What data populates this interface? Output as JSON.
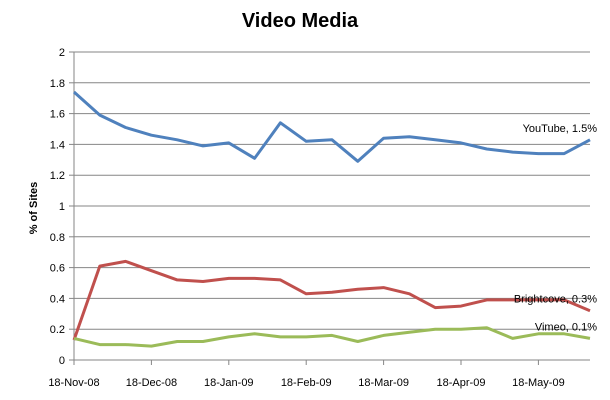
{
  "chart_data": {
    "type": "line",
    "title": "Video Media",
    "xlabel": "",
    "ylabel": "% of Sites",
    "ylim": [
      0,
      2
    ],
    "y_ticks": [
      "0",
      "0.2",
      "0.4",
      "0.6",
      "0.8",
      "1",
      "1.2",
      "1.4",
      "1.6",
      "1.8",
      "2"
    ],
    "x_tick_labels": [
      "18-Nov-08",
      "18-Dec-08",
      "18-Jan-09",
      "18-Feb-09",
      "18-Mar-09",
      "18-Apr-09",
      "18-May-09"
    ],
    "grid": "horizontal",
    "legend": "none",
    "series": [
      {
        "name": "YouTube",
        "annotation": "YouTube, 1.5%",
        "color": "#4f81bd",
        "values": [
          1.74,
          1.59,
          1.51,
          1.46,
          1.43,
          1.39,
          1.41,
          1.31,
          1.54,
          1.42,
          1.43,
          1.29,
          1.44,
          1.45,
          1.43,
          1.41,
          1.37,
          1.35,
          1.34,
          1.34,
          1.43
        ]
      },
      {
        "name": "Brightcove",
        "annotation": "Brightcove, 0.3%",
        "color": "#c0504d",
        "values": [
          0.13,
          0.61,
          0.64,
          0.58,
          0.52,
          0.51,
          0.53,
          0.53,
          0.52,
          0.43,
          0.44,
          0.46,
          0.47,
          0.43,
          0.34,
          0.35,
          0.39,
          0.39,
          0.39,
          0.39,
          0.32
        ]
      },
      {
        "name": "Vimeo",
        "annotation": "Vimeo, 0.1%",
        "color": "#9bbb59",
        "values": [
          0.14,
          0.1,
          0.1,
          0.09,
          0.12,
          0.12,
          0.15,
          0.17,
          0.15,
          0.15,
          0.16,
          0.12,
          0.16,
          0.18,
          0.2,
          0.2,
          0.21,
          0.14,
          0.17,
          0.17,
          0.14
        ]
      }
    ]
  }
}
